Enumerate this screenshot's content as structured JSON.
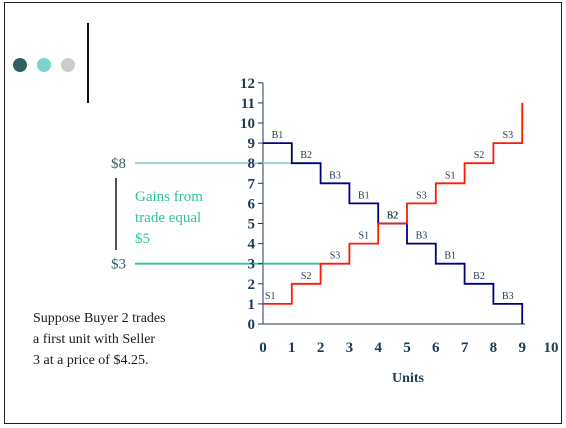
{
  "colors": {
    "demand": "#000080",
    "supply": "#ff1a00",
    "line_high": "#8fd1d1",
    "line_low": "#2ec4a0",
    "gains_text": "#2ec4a0",
    "axis": "#1f3a55",
    "dots": [
      "#2f5f60",
      "#7ad3cc",
      "#cccccc"
    ]
  },
  "chart_data": {
    "type": "line",
    "title": "",
    "xlabel": "Units",
    "ylabel": "",
    "xlim": [
      0,
      10
    ],
    "ylim": [
      0,
      12
    ],
    "x_ticks": [
      0,
      1,
      2,
      3,
      4,
      5,
      6,
      7,
      8,
      9,
      10
    ],
    "y_ticks": [
      0,
      1,
      2,
      3,
      4,
      5,
      6,
      7,
      8,
      9,
      10,
      11,
      12
    ],
    "series": [
      {
        "name": "",
        "kind": "demand-step",
        "points": [
          [
            0,
            9
          ],
          [
            1,
            9
          ],
          [
            1,
            8
          ],
          [
            2,
            8
          ],
          [
            2,
            7
          ],
          [
            3,
            7
          ],
          [
            3,
            6
          ],
          [
            4,
            6
          ],
          [
            4,
            5
          ],
          [
            5,
            5
          ],
          [
            5,
            4
          ],
          [
            6,
            4
          ],
          [
            6,
            3
          ],
          [
            7,
            3
          ],
          [
            7,
            2
          ],
          [
            8,
            2
          ],
          [
            8,
            1
          ],
          [
            9,
            1
          ],
          [
            9,
            0
          ]
        ],
        "step_labels": [
          {
            "text": "B1",
            "x": 0.5,
            "y": 9
          },
          {
            "text": "B2",
            "x": 1.5,
            "y": 8
          },
          {
            "text": "B3",
            "x": 2.5,
            "y": 7
          },
          {
            "text": "B1",
            "x": 3.5,
            "y": 6
          },
          {
            "text": "B2",
            "x": 4.5,
            "y": 5
          },
          {
            "text": "B3",
            "x": 5.5,
            "y": 4
          },
          {
            "text": "B1",
            "x": 6.5,
            "y": 3
          },
          {
            "text": "B2",
            "x": 7.5,
            "y": 2
          },
          {
            "text": "B3",
            "x": 8.5,
            "y": 1
          }
        ]
      },
      {
        "name": "",
        "kind": "supply-step",
        "points": [
          [
            0,
            1
          ],
          [
            1,
            1
          ],
          [
            1,
            2
          ],
          [
            2,
            2
          ],
          [
            2,
            3
          ],
          [
            3,
            3
          ],
          [
            3,
            4
          ],
          [
            4,
            4
          ],
          [
            4,
            5
          ],
          [
            5,
            5
          ],
          [
            5,
            6
          ],
          [
            6,
            6
          ],
          [
            6,
            7
          ],
          [
            7,
            7
          ],
          [
            7,
            8
          ],
          [
            8,
            8
          ],
          [
            8,
            9
          ],
          [
            9,
            9
          ],
          [
            9,
            11
          ]
        ],
        "step_labels": [
          {
            "text": "S1",
            "x": 0.25,
            "y": 1
          },
          {
            "text": "S2",
            "x": 1.5,
            "y": 2
          },
          {
            "text": "S3",
            "x": 2.5,
            "y": 3
          },
          {
            "text": "S1",
            "x": 3.5,
            "y": 4
          },
          {
            "text": "S2",
            "x": 4.5,
            "y": 5
          },
          {
            "text": "S3",
            "x": 5.5,
            "y": 6
          },
          {
            "text": "S1",
            "x": 6.5,
            "y": 7
          },
          {
            "text": "S2",
            "x": 7.5,
            "y": 8
          },
          {
            "text": "S3",
            "x": 8.5,
            "y": 9
          }
        ]
      }
    ],
    "price_lines": [
      {
        "label": "$8",
        "y": 8,
        "x_end": 1
      },
      {
        "label": "$3",
        "y": 3,
        "x_end": 2
      }
    ],
    "annotation": [
      "Gains from",
      "trade equal",
      "$5"
    ]
  },
  "note": [
    "Suppose Buyer 2 trades",
    "a first unit with Seller",
    "3 at a price of $4.25."
  ]
}
